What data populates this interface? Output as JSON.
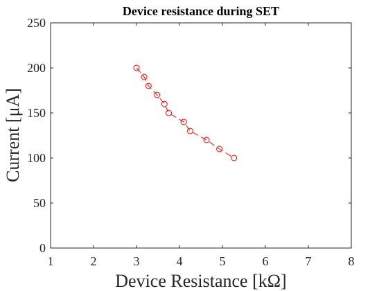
{
  "chart_data": {
    "type": "line",
    "title": "Device resistance during SET",
    "xlabel": "Device Resistance [kΩ]",
    "ylabel": "Current [μA]",
    "xlim": [
      1,
      8
    ],
    "ylim": [
      0,
      250
    ],
    "xticks": [
      "1",
      "2",
      "3",
      "4",
      "5",
      "6",
      "7",
      "8"
    ],
    "yticks": [
      "0",
      "50",
      "100",
      "150",
      "200",
      "250"
    ],
    "grid": false,
    "series": [
      {
        "color": "#ff0000",
        "marker": "circle",
        "linestyle": "dashed",
        "x": [
          3.0,
          3.18,
          3.28,
          3.48,
          3.65,
          3.75,
          4.1,
          4.25,
          4.63,
          4.93,
          5.27
        ],
        "y": [
          200,
          190,
          180,
          170,
          160,
          150,
          140,
          130,
          120,
          110,
          100
        ]
      }
    ]
  }
}
